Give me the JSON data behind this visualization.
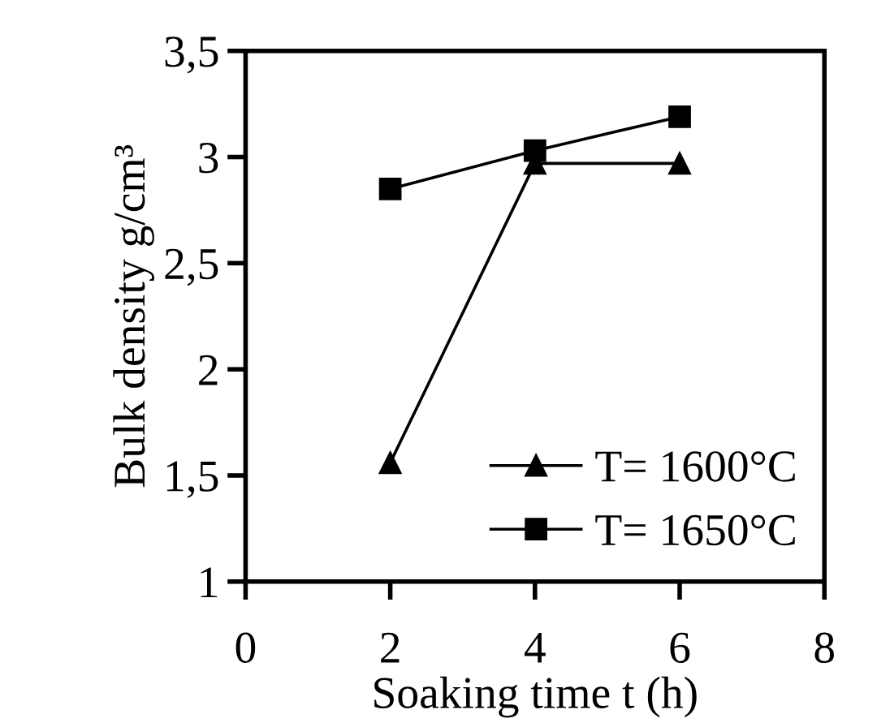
{
  "chart_data": {
    "type": "line",
    "xlabel": "Soaking time t (h)",
    "ylabel": "Bulk density g/cm³",
    "x": [
      2,
      4,
      6
    ],
    "series": [
      {
        "name": "T= 1600°C",
        "color": "#000000",
        "marker": "triangle",
        "values": [
          1.56,
          2.97,
          2.97
        ]
      },
      {
        "name": "T= 1650°C",
        "color": "#000000",
        "marker": "square",
        "values": [
          2.85,
          3.03,
          3.19
        ]
      }
    ],
    "xlim": [
      0,
      8
    ],
    "xticks": [
      0,
      2,
      4,
      6,
      8
    ],
    "ylim": [
      1,
      3.5
    ],
    "yticks": [
      1,
      {
        "value": 1.5,
        "label": "1,5"
      },
      2,
      {
        "value": 2.5,
        "label": "2,5"
      },
      3,
      {
        "value": 3.5,
        "label": "3,5"
      }
    ],
    "grid": false,
    "legend": "bottom right",
    "line_style": "solid"
  }
}
